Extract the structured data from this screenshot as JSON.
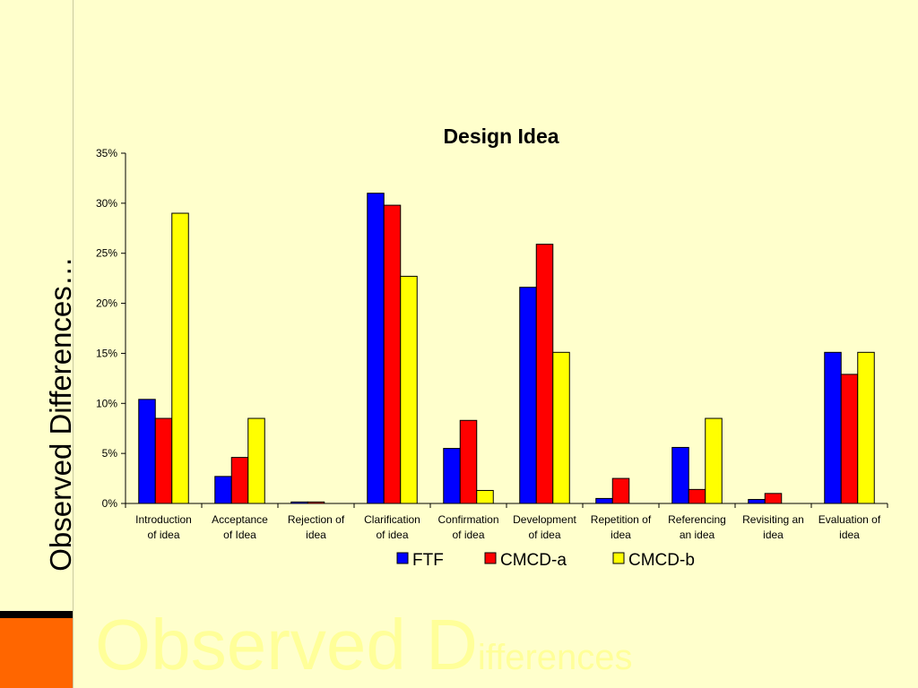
{
  "slide": {
    "vertical_title": "Observed Differences…",
    "watermark_big": "Observed D",
    "watermark_small": "ifferences"
  },
  "colors": {
    "background": "#FFFFCC",
    "accent_orange": "#FF6600",
    "watermark": "#FFFF99"
  },
  "chart_data": {
    "type": "bar",
    "title": "Design Idea",
    "xlabel": "",
    "ylabel": "",
    "ylim": [
      0,
      35
    ],
    "yticks": [
      "0%",
      "5%",
      "10%",
      "15%",
      "20%",
      "25%",
      "30%",
      "35%"
    ],
    "ytick_values": [
      0,
      5,
      10,
      15,
      20,
      25,
      30,
      35
    ],
    "categories": [
      "Introduction of idea",
      "Acceptance of Idea",
      "Rejection of idea",
      "Clarification of idea",
      "Confirmation of idea",
      "Development of idea",
      "Repetition of idea",
      "Referencing an idea",
      "Revisiting an idea",
      "Evaluation of idea"
    ],
    "category_lines": [
      [
        "Introduction",
        "of idea"
      ],
      [
        "Acceptance",
        "of Idea"
      ],
      [
        "Rejection of",
        "idea"
      ],
      [
        "Clarification",
        "of idea"
      ],
      [
        "Confirmation",
        "of idea"
      ],
      [
        "Development",
        "of idea"
      ],
      [
        "Repetition of",
        "idea"
      ],
      [
        "Referencing",
        "an idea"
      ],
      [
        "Revisiting an",
        "idea"
      ],
      [
        "Evaluation of",
        "idea"
      ]
    ],
    "series": [
      {
        "name": "FTF",
        "color": "#0000FF",
        "values": [
          10.4,
          2.7,
          0.15,
          31.0,
          5.5,
          21.6,
          0.5,
          5.6,
          0.4,
          15.1
        ]
      },
      {
        "name": "CMCD-a",
        "color": "#FF0000",
        "values": [
          8.5,
          4.6,
          0.15,
          29.8,
          8.3,
          25.9,
          2.5,
          1.4,
          1.0,
          12.9
        ]
      },
      {
        "name": "CMCD-b",
        "color": "#FFFF00",
        "values": [
          29.0,
          8.5,
          0,
          22.7,
          1.3,
          15.1,
          0,
          8.5,
          0,
          15.1
        ]
      }
    ],
    "grid": false,
    "legend_position": "bottom"
  }
}
